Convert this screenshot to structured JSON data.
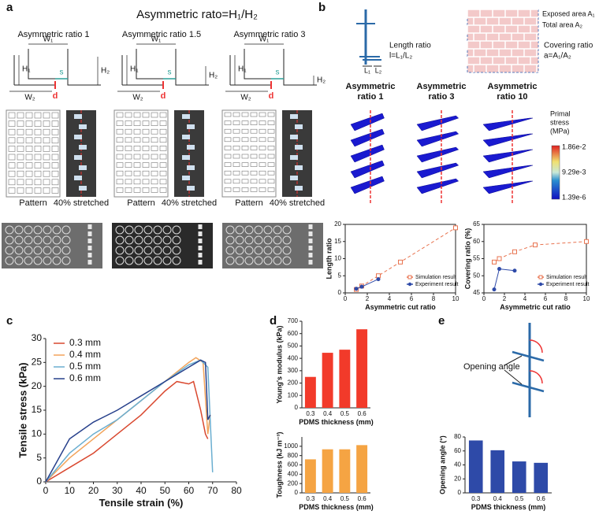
{
  "panel_labels": [
    "a",
    "b",
    "c",
    "d",
    "e"
  ],
  "panel_a": {
    "title": "Asymmetric rato=H₁/H₂",
    "columns": [
      {
        "title": "Asymmetric ratio 1",
        "labels": [
          "W₁",
          "H₁",
          "s",
          "H₂",
          "W₂",
          "d"
        ],
        "captions": [
          "Pattern",
          "40% stretched"
        ]
      },
      {
        "title": "Asymmetric ratio 1.5",
        "labels": [
          "W₁",
          "H₁",
          "s",
          "H₂",
          "W₂",
          "d"
        ],
        "captions": [
          "Pattern",
          "40% stretched"
        ]
      },
      {
        "title": "Asymmetric ratio 3",
        "labels": [
          "W₁",
          "H₁",
          "s",
          "H₂",
          "W₂",
          "d"
        ],
        "captions": [
          "Pattern",
          "40% stretched"
        ]
      }
    ]
  },
  "panel_b": {
    "length_ratio": "Length ratio",
    "length_formula": "l=L₁/L₂",
    "L1": "L₁",
    "L2": "L₂",
    "exposed": "Exposed area A₁",
    "total": "Total area A₂",
    "covering_ratio": "Covering ratio",
    "covering_formula": "a=A₁/A₂",
    "ratios": [
      [
        "Asymmetric",
        "ratio 1"
      ],
      [
        "Asymmetric",
        "ratio 3"
      ],
      [
        "Asymmetric",
        "ratio 10"
      ]
    ],
    "colorbar_title": [
      "Primal",
      "stress",
      "(MPa)"
    ],
    "colorbar_labels": [
      "1.86e-2",
      "9.29e-3",
      "1.39e-6"
    ]
  },
  "panel_e": {
    "label": "Opening angle"
  },
  "chart_data": [
    {
      "type": "line",
      "xlabel": "Asymmetric cut ratio",
      "ylabel": "Length ratio",
      "xlim": [
        0,
        10
      ],
      "xticks": [
        0,
        2,
        4,
        6,
        8,
        10
      ],
      "ylim": [
        0,
        20
      ],
      "yticks": [
        0,
        5,
        10,
        15,
        20
      ],
      "legend": "lower right",
      "frame": true,
      "series": [
        {
          "name": "Simulation result",
          "color": "#e8734f",
          "marker": "square-open",
          "dashed": true,
          "x": [
            1,
            1.5,
            3,
            5,
            10
          ],
          "values": [
            1,
            2,
            5,
            9,
            19
          ]
        },
        {
          "name": "Experiment result",
          "color": "#2e4aa8",
          "marker": "circle",
          "dashed": false,
          "x": [
            1,
            1.5,
            3
          ],
          "values": [
            1.2,
            1.8,
            4
          ]
        }
      ]
    },
    {
      "type": "line",
      "xlabel": "Asymmetric cut ratio",
      "ylabel": "Covering ratio (%)",
      "xlim": [
        0,
        10
      ],
      "xticks": [
        0,
        2,
        4,
        6,
        8,
        10
      ],
      "ylim": [
        45,
        65
      ],
      "yticks": [
        45,
        50,
        55,
        60,
        65
      ],
      "legend": "lower right",
      "frame": true,
      "series": [
        {
          "name": "Simulation result",
          "color": "#e8734f",
          "marker": "square-open",
          "dashed": true,
          "x": [
            1,
            1.5,
            3,
            5,
            10
          ],
          "values": [
            54,
            55,
            57,
            59,
            60
          ]
        },
        {
          "name": "Experiment result",
          "color": "#2e4aa8",
          "marker": "circle",
          "dashed": false,
          "x": [
            1,
            1.5,
            3
          ],
          "values": [
            46,
            52,
            51.5
          ]
        }
      ]
    },
    {
      "type": "line",
      "xlabel": "Tensile strain (%)",
      "ylabel": "Tensile stress (kPa)",
      "xlim": [
        0,
        80
      ],
      "xticks": [
        0,
        10,
        20,
        30,
        40,
        50,
        60,
        70,
        80
      ],
      "ylim": [
        0,
        30
      ],
      "yticks": [
        0,
        5,
        10,
        15,
        20,
        25,
        30
      ],
      "legend": "upper left",
      "frame": false,
      "series": [
        {
          "name": "0.3 mm",
          "color": "#d9482f",
          "x": [
            0,
            10,
            20,
            30,
            40,
            50,
            55,
            60,
            62,
            65,
            67,
            68
          ],
          "values": [
            0,
            3,
            6,
            10,
            14,
            19,
            21,
            20.5,
            21,
            15,
            10,
            9
          ]
        },
        {
          "name": "0.4 mm",
          "color": "#f2a35a",
          "x": [
            0,
            10,
            20,
            30,
            40,
            50,
            55,
            60,
            63,
            66,
            68,
            69
          ],
          "values": [
            0,
            5,
            9,
            13,
            17,
            21,
            23,
            25,
            26,
            25,
            10,
            14
          ]
        },
        {
          "name": "0.5 mm",
          "color": "#6aaed0",
          "x": [
            0,
            10,
            20,
            30,
            40,
            50,
            60,
            65,
            68,
            70
          ],
          "values": [
            0,
            6,
            10,
            13,
            17,
            21,
            24.5,
            25.5,
            24,
            2
          ]
        },
        {
          "name": "0.6 mm",
          "color": "#27408b",
          "x": [
            0,
            10,
            20,
            30,
            40,
            50,
            60,
            65,
            67,
            68,
            69
          ],
          "values": [
            0,
            9,
            12.5,
            15,
            18,
            21,
            24,
            25.5,
            25,
            13,
            14
          ]
        }
      ]
    },
    {
      "type": "bar",
      "xlabel": "PDMS thickness (mm)",
      "ylabel": "Young's modulus (kPa)",
      "categories": [
        "0.3",
        "0.4",
        "0.5",
        "0.6"
      ],
      "values": [
        250,
        445,
        470,
        635
      ],
      "color": "#f23a2a",
      "ylim": [
        0,
        700
      ],
      "yticks": [
        0,
        100,
        200,
        300,
        400,
        500,
        600,
        700
      ]
    },
    {
      "type": "bar",
      "xlabel": "PDMS thickness (mm)",
      "ylabel": "Toughness (kJ m⁻³)",
      "categories": [
        "0.3",
        "0.4",
        "0.5",
        "0.6"
      ],
      "values": [
        720,
        935,
        935,
        1025
      ],
      "color": "#f5a443",
      "ylim": [
        0,
        1200
      ],
      "yticks": [
        0,
        200,
        400,
        600,
        800,
        1000
      ]
    },
    {
      "type": "bar",
      "xlabel": "PDMS thickness (mm)",
      "ylabel": "Opening angle (°)",
      "categories": [
        "0.3",
        "0.4",
        "0.5",
        "0.6"
      ],
      "values": [
        75,
        61,
        45,
        43
      ],
      "color": "#2e4aa8",
      "ylim": [
        0,
        80
      ],
      "yticks": [
        0,
        20,
        40,
        60,
        80
      ]
    }
  ]
}
